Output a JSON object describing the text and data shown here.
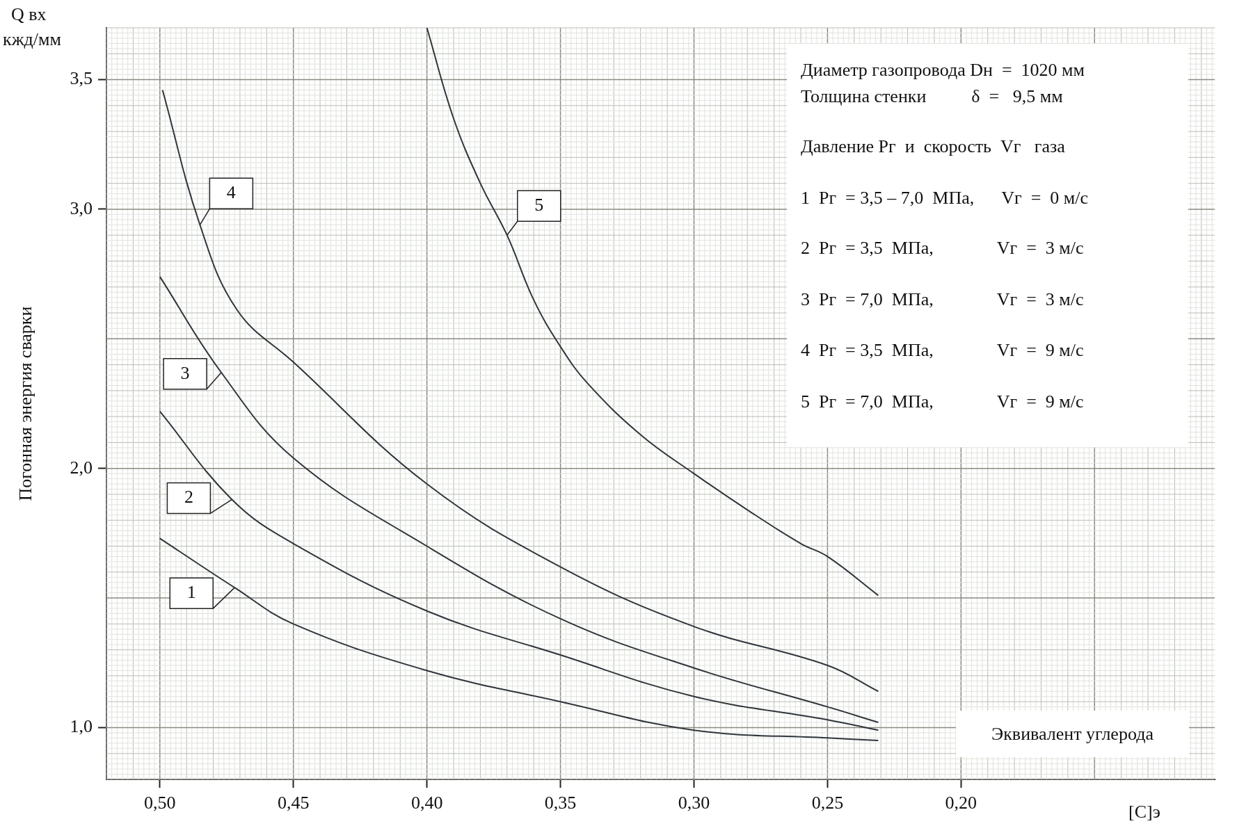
{
  "chart_data": {
    "type": "line",
    "ylabel": "Погонная энергия сварки",
    "xlabel": "[C]э",
    "annotations": [
      "Q вх",
      "кжд/мм",
      "Диаметр газопровода Dн  =  1020 мм",
      "Толщина стенки          δ  =   9,5 мм",
      "Давление Рг  и  скорость  Vг   газа",
      "1  Рг  = 3,5 – 7,0  МПа,      Vг  =  0 м/с",
      "2  Рг  = 3,5  МПа,              Vг  =  3 м/с",
      "3  Рг  = 7,0  МПа,              Vг  =  3 м/с",
      "4  Рг  = 3,5  МПа,              Vг  =  9 м/с",
      "5  Рг  = 7,0  МПа,              Vг  =  9 м/с",
      "Эквивалент углерода"
    ],
    "xlim": [
      0.52,
      0.105
    ],
    "ylim": [
      0.8,
      3.7
    ],
    "xticks": [
      {
        "value": 0.5,
        "label": "0,50"
      },
      {
        "value": 0.45,
        "label": "0,45"
      },
      {
        "value": 0.4,
        "label": "0,40"
      },
      {
        "value": 0.35,
        "label": "0,35"
      },
      {
        "value": 0.3,
        "label": "0,30"
      },
      {
        "value": 0.25,
        "label": "0,25"
      },
      {
        "value": 0.2,
        "label": "0,20"
      }
    ],
    "yticks": [
      {
        "value": 1.0,
        "label": "1,0"
      },
      {
        "value": 2.0,
        "label": "2,0"
      },
      {
        "value": 3.0,
        "label": "3,0"
      },
      {
        "value": 3.5,
        "label": "3,5"
      }
    ],
    "grid": true,
    "legend": false,
    "series": [
      {
        "name": "1",
        "color": "#2f353b",
        "x": [
          0.5,
          0.472,
          0.45,
          0.4,
          0.35,
          0.3,
          0.25,
          0.231
        ],
        "values": [
          1.73,
          1.54,
          1.4,
          1.22,
          1.1,
          0.99,
          0.96,
          0.95
        ]
      },
      {
        "name": "2",
        "color": "#2f353b",
        "x": [
          0.5,
          0.473,
          0.45,
          0.4,
          0.35,
          0.3,
          0.25,
          0.231
        ],
        "values": [
          2.22,
          1.88,
          1.71,
          1.45,
          1.28,
          1.12,
          1.03,
          0.99
        ]
      },
      {
        "name": "3",
        "color": "#2f353b",
        "x": [
          0.5,
          0.477,
          0.45,
          0.4,
          0.35,
          0.3,
          0.25,
          0.231
        ],
        "values": [
          2.74,
          2.37,
          2.04,
          1.7,
          1.42,
          1.23,
          1.08,
          1.02
        ]
      },
      {
        "name": "4",
        "color": "#2f353b",
        "x": [
          0.499,
          0.485,
          0.471,
          0.45,
          0.4,
          0.35,
          0.3,
          0.25,
          0.231
        ],
        "values": [
          3.46,
          2.94,
          2.61,
          2.41,
          1.94,
          1.62,
          1.39,
          1.24,
          1.14
        ]
      },
      {
        "name": "5",
        "color": "#2f353b",
        "x": [
          0.4,
          0.39,
          0.38,
          0.37,
          0.36,
          0.35,
          0.34,
          0.32,
          0.3,
          0.28,
          0.26,
          0.25,
          0.231
        ],
        "values": [
          3.7,
          3.35,
          3.1,
          2.9,
          2.65,
          2.47,
          2.33,
          2.13,
          1.98,
          1.84,
          1.71,
          1.66,
          1.51
        ]
      }
    ]
  }
}
